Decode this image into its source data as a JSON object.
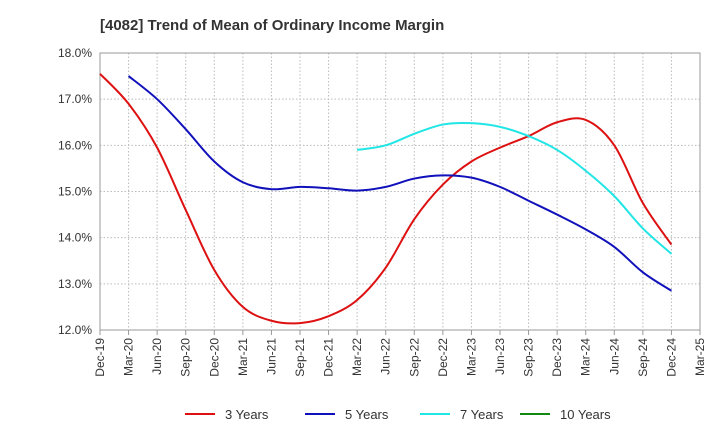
{
  "chart_data": {
    "type": "line",
    "title": "[4082]  Trend of Mean of Ordinary Income Margin",
    "xlabel": "",
    "ylabel": "",
    "ylim": [
      12.0,
      18.0
    ],
    "y_ticks": [
      "12.0%",
      "13.0%",
      "14.0%",
      "15.0%",
      "16.0%",
      "17.0%",
      "18.0%"
    ],
    "y_tick_values": [
      12,
      13,
      14,
      15,
      16,
      17,
      18
    ],
    "x_tick_labels": [
      "Dec-19",
      "Mar-20",
      "Jun-20",
      "Sep-20",
      "Dec-20",
      "Mar-21",
      "Jun-21",
      "Sep-21",
      "Dec-21",
      "Mar-22",
      "Jun-22",
      "Sep-22",
      "Dec-22",
      "Mar-23",
      "Jun-23",
      "Sep-23",
      "Dec-23",
      "Mar-24",
      "Jun-24",
      "Sep-24",
      "Dec-24",
      "Mar-25"
    ],
    "grid": true,
    "legend_position": "bottom",
    "series": [
      {
        "name": "3 Years",
        "color": "#dd1111",
        "points": [
          [
            "Dec-19",
            17.55
          ],
          [
            "Mar-20",
            16.9
          ],
          [
            "Jun-20",
            15.95
          ],
          [
            "Sep-20",
            14.6
          ],
          [
            "Dec-20",
            13.3
          ],
          [
            "Mar-21",
            12.5
          ],
          [
            "Jun-21",
            12.2
          ],
          [
            "Sep-21",
            12.15
          ],
          [
            "Dec-21",
            12.3
          ],
          [
            "Mar-22",
            12.65
          ],
          [
            "Jun-22",
            13.35
          ],
          [
            "Sep-22",
            14.4
          ],
          [
            "Dec-22",
            15.15
          ],
          [
            "Mar-23",
            15.65
          ],
          [
            "Jun-23",
            15.95
          ],
          [
            "Sep-23",
            16.2
          ],
          [
            "Dec-23",
            16.5
          ],
          [
            "Mar-24",
            16.55
          ],
          [
            "Jun-24",
            16.0
          ],
          [
            "Sep-24",
            14.75
          ],
          [
            "Dec-24",
            13.85
          ]
        ]
      },
      {
        "name": "5 Years",
        "color": "#1111bb",
        "points": [
          [
            "Mar-20",
            17.5
          ],
          [
            "Jun-20",
            17.0
          ],
          [
            "Sep-20",
            16.35
          ],
          [
            "Dec-20",
            15.65
          ],
          [
            "Mar-21",
            15.2
          ],
          [
            "Jun-21",
            15.05
          ],
          [
            "Sep-21",
            15.1
          ],
          [
            "Dec-21",
            15.07
          ],
          [
            "Mar-22",
            15.02
          ],
          [
            "Jun-22",
            15.1
          ],
          [
            "Sep-22",
            15.28
          ],
          [
            "Dec-22",
            15.35
          ],
          [
            "Mar-23",
            15.3
          ],
          [
            "Jun-23",
            15.1
          ],
          [
            "Sep-23",
            14.8
          ],
          [
            "Dec-23",
            14.5
          ],
          [
            "Mar-24",
            14.18
          ],
          [
            "Jun-24",
            13.8
          ],
          [
            "Sep-24",
            13.25
          ],
          [
            "Dec-24",
            12.85
          ]
        ]
      },
      {
        "name": "7 Years",
        "color": "#22e5e5",
        "points": [
          [
            "Mar-22",
            15.9
          ],
          [
            "Jun-22",
            16.0
          ],
          [
            "Sep-22",
            16.25
          ],
          [
            "Dec-22",
            16.45
          ],
          [
            "Mar-23",
            16.48
          ],
          [
            "Jun-23",
            16.4
          ],
          [
            "Sep-23",
            16.2
          ],
          [
            "Dec-23",
            15.9
          ],
          [
            "Mar-24",
            15.45
          ],
          [
            "Jun-24",
            14.9
          ],
          [
            "Sep-24",
            14.2
          ],
          [
            "Dec-24",
            13.65
          ]
        ]
      },
      {
        "name": "10 Years",
        "color": "#118811",
        "points": []
      }
    ]
  }
}
